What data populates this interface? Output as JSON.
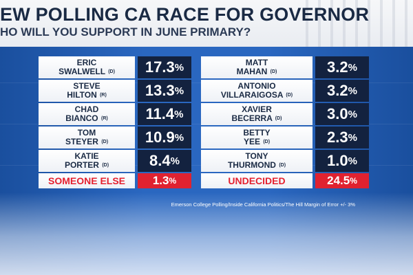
{
  "header": {
    "title": "EW POLLING CA RACE FOR GOVERNOR",
    "subtitle": "HO WILL YOU SUPPORT IN JUNE PRIMARY?"
  },
  "left_column": [
    {
      "first": "ERIC",
      "last": "SWALWELL",
      "party": "(D)",
      "value": "17.3",
      "pct": "%"
    },
    {
      "first": "STEVE",
      "last": "HILTON",
      "party": "(R)",
      "value": "13.3",
      "pct": "%"
    },
    {
      "first": "CHAD",
      "last": "BIANCO",
      "party": "(R)",
      "value": "11.4",
      "pct": "%"
    },
    {
      "first": "TOM",
      "last": "STEYER",
      "party": "(D)",
      "value": "10.9",
      "pct": "%"
    },
    {
      "first": "KATIE",
      "last": "PORTER",
      "party": "(D)",
      "value": "8.4",
      "pct": "%"
    },
    {
      "first": "",
      "last": "SOMEONE ELSE",
      "party": "",
      "value": "1.3",
      "pct": "%"
    }
  ],
  "right_column": [
    {
      "first": "MATT",
      "last": "MAHAN",
      "party": "(D)",
      "value": "3.2",
      "pct": "%"
    },
    {
      "first": "ANTONIO",
      "last": "VILLARAIGOSA",
      "party": "(D)",
      "value": "3.2",
      "pct": "%"
    },
    {
      "first": "XAVIER",
      "last": "BECERRA",
      "party": "(D)",
      "value": "3.0",
      "pct": "%"
    },
    {
      "first": "BETTY",
      "last": "YEE",
      "party": "(D)",
      "value": "2.3",
      "pct": "%"
    },
    {
      "first": "TONY",
      "last": "THURMOND",
      "party": "(D)",
      "value": "1.0",
      "pct": "%"
    },
    {
      "first": "",
      "last": "UNDECIDED",
      "party": "",
      "value": "24.5",
      "pct": "%"
    }
  ],
  "footer": "Emerson College Polling/Inside California Politics/The Hill Margin of Error +/-  3%",
  "colors": {
    "accent_red": "#e02230",
    "value_box": "#13223f",
    "background": "#1d57a8"
  }
}
